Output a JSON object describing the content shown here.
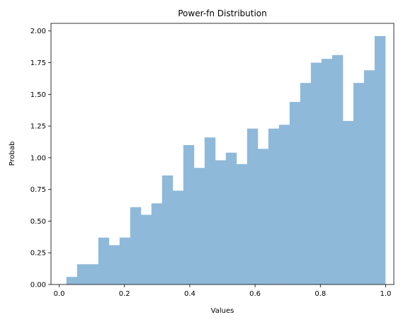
{
  "chart_data": {
    "type": "bar",
    "title": "Power-fn Distribution",
    "xlabel": "Values",
    "ylabel": "Probab",
    "xlim": [
      -0.025,
      1.025
    ],
    "ylim": [
      0,
      2.06
    ],
    "grid": false,
    "bar_color": "#8fb9d9",
    "x_ticks": [
      {
        "value": 0.0,
        "label": "0.0"
      },
      {
        "value": 0.2,
        "label": "0.2"
      },
      {
        "value": 0.4,
        "label": "0.4"
      },
      {
        "value": 0.6,
        "label": "0.6"
      },
      {
        "value": 0.8,
        "label": "0.8"
      },
      {
        "value": 1.0,
        "label": "1.0"
      }
    ],
    "y_ticks": [
      {
        "value": 0.0,
        "label": "0.00"
      },
      {
        "value": 0.25,
        "label": "0.25"
      },
      {
        "value": 0.5,
        "label": "0.50"
      },
      {
        "value": 0.75,
        "label": "0.75"
      },
      {
        "value": 1.0,
        "label": "1.00"
      },
      {
        "value": 1.25,
        "label": "1.25"
      },
      {
        "value": 1.5,
        "label": "1.50"
      },
      {
        "value": 1.75,
        "label": "1.75"
      },
      {
        "value": 2.0,
        "label": "2.00"
      }
    ],
    "bin_edges": [
      0.0222,
      0.0548,
      0.0873,
      0.1199,
      0.1524,
      0.185,
      0.2175,
      0.2501,
      0.2826,
      0.3152,
      0.3477,
      0.3803,
      0.4128,
      0.4454,
      0.4779,
      0.5105,
      0.543,
      0.5756,
      0.6081,
      0.6407,
      0.6732,
      0.7058,
      0.7383,
      0.7709,
      0.8034,
      0.836,
      0.8685,
      0.9011,
      0.9336,
      0.9662,
      0.9987
    ],
    "values": [
      0.06,
      0.16,
      0.16,
      0.37,
      0.31,
      0.37,
      0.61,
      0.55,
      0.64,
      0.86,
      0.74,
      1.1,
      0.92,
      1.16,
      0.98,
      1.04,
      0.95,
      1.23,
      1.07,
      1.23,
      1.26,
      1.44,
      1.59,
      1.75,
      1.78,
      1.81,
      1.29,
      1.59,
      1.69,
      1.96
    ]
  }
}
